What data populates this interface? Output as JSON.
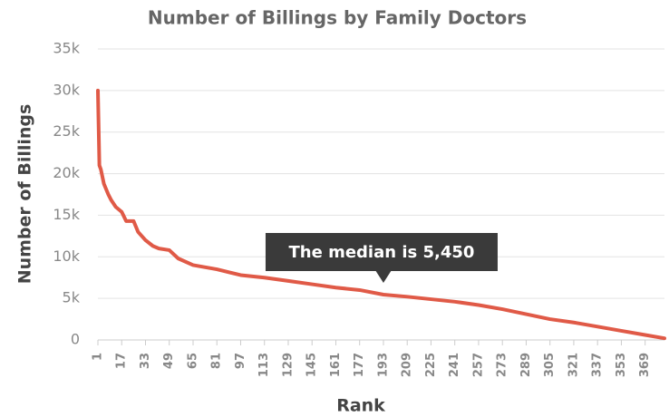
{
  "chart_data": {
    "type": "line",
    "title": "Number of Billings by Family Doctors",
    "x_label": "Rank",
    "y_label": "Number of Billings",
    "x": [
      1,
      2,
      3,
      5,
      8,
      10,
      13,
      17,
      20,
      25,
      28,
      33,
      38,
      42,
      49,
      55,
      65,
      81,
      97,
      113,
      129,
      145,
      161,
      177,
      193,
      209,
      225,
      241,
      257,
      273,
      289,
      305,
      321,
      337,
      353,
      369,
      382
    ],
    "series": [
      {
        "name": "Number of Billings",
        "color": "#e05a47",
        "values": [
          30000,
          21000,
          20500,
          18800,
          17500,
          16800,
          16000,
          15400,
          14300,
          14300,
          13000,
          12000,
          11300,
          11000,
          10800,
          9800,
          9000,
          8500,
          7800,
          7500,
          7100,
          6700,
          6300,
          6000,
          5450,
          5200,
          4900,
          4600,
          4200,
          3700,
          3100,
          2500,
          2100,
          1600,
          1100,
          600,
          200
        ]
      }
    ],
    "xlim": [
      1,
      382
    ],
    "xticks": [
      1,
      17,
      33,
      49,
      65,
      81,
      97,
      113,
      129,
      145,
      161,
      177,
      193,
      209,
      225,
      241,
      257,
      273,
      289,
      305,
      321,
      337,
      353,
      369
    ],
    "ylim": [
      0,
      35000
    ],
    "yticks": [
      {
        "value": 0,
        "label": "0"
      },
      {
        "value": 5000,
        "label": "5k"
      },
      {
        "value": 10000,
        "label": "10k"
      },
      {
        "value": 15000,
        "label": "15k"
      },
      {
        "value": 20000,
        "label": "20k"
      },
      {
        "value": 25000,
        "label": "25k"
      },
      {
        "value": 30000,
        "label": "30k"
      },
      {
        "value": 35000,
        "label": "35k"
      }
    ],
    "grid": true,
    "annotation": {
      "text": "The median is 5,450",
      "x": 193,
      "y": 5450
    }
  }
}
